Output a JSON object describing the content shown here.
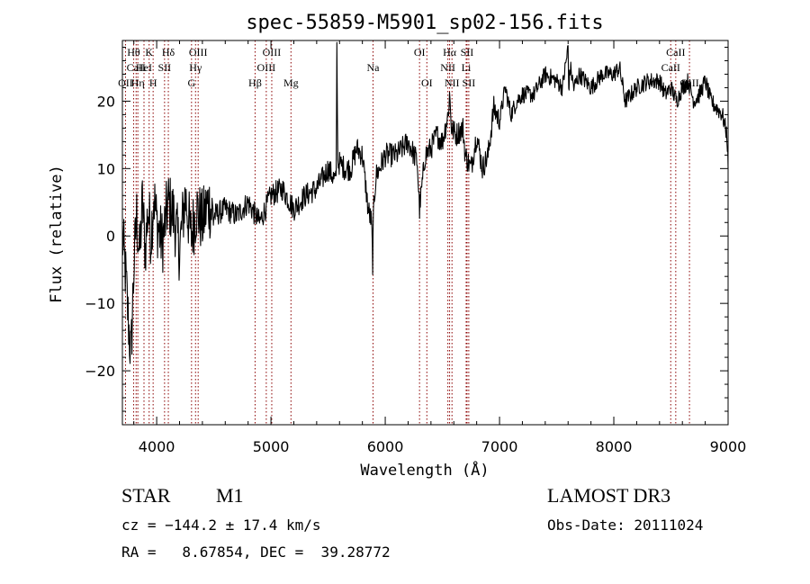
{
  "chart_data": {
    "type": "line",
    "title": "spec-55859-M5901_sp02-156.fits",
    "xlabel": "Wavelength (Å)",
    "ylabel": "Flux (relative)",
    "xlim": [
      3700,
      9000
    ],
    "ylim": [
      -28,
      29
    ],
    "x_ticks": [
      4000,
      5000,
      6000,
      7000,
      8000,
      9000
    ],
    "y_ticks": [
      -20,
      -10,
      0,
      10,
      20
    ],
    "series": [
      {
        "name": "flux",
        "x": [
          3700,
          3725,
          3750,
          3775,
          3800,
          3825,
          3850,
          3875,
          3900,
          3925,
          3950,
          3975,
          4000,
          4050,
          4100,
          4150,
          4200,
          4250,
          4300,
          4350,
          4400,
          4450,
          4500,
          4600,
          4700,
          4800,
          4900,
          5000,
          5100,
          5200,
          5300,
          5400,
          5500,
          5570,
          5577,
          5585,
          5650,
          5700,
          5750,
          5800,
          5850,
          5880,
          5890,
          5900,
          5920,
          5950,
          6000,
          6100,
          6200,
          6280,
          6300,
          6350,
          6400,
          6450,
          6500,
          6550,
          6563,
          6580,
          6620,
          6680,
          6700,
          6750,
          6800,
          6850,
          6900,
          6950,
          7000,
          7050,
          7100,
          7150,
          7200,
          7300,
          7400,
          7500,
          7550,
          7600,
          7605,
          7620,
          7650,
          7700,
          7800,
          7900,
          8000,
          8050,
          8100,
          8200,
          8300,
          8400,
          8450,
          8500,
          8550,
          8600,
          8650,
          8700,
          8750,
          8800,
          8850,
          8900,
          8950,
          8990,
          9000
        ],
        "values": [
          0,
          -5,
          -12,
          -18,
          -5,
          3,
          -3,
          5,
          -2,
          4,
          0,
          6,
          2,
          -1,
          5,
          3,
          -2,
          6,
          0,
          4,
          2,
          5,
          3,
          4,
          3,
          5,
          2,
          6,
          7,
          4,
          6,
          7,
          10,
          8,
          28,
          11,
          10,
          10,
          13,
          12,
          4,
          2,
          -4,
          5,
          9,
          10,
          12,
          12,
          14,
          11,
          4,
          12,
          13,
          15,
          14,
          18,
          21,
          16,
          15,
          16,
          12,
          10,
          15,
          10,
          12,
          19,
          17,
          22,
          18,
          20,
          21,
          21,
          24,
          23,
          22,
          28,
          22,
          25,
          22,
          24,
          22,
          24,
          24,
          25,
          20,
          22,
          23,
          23,
          21,
          22,
          20,
          22,
          23,
          20,
          21,
          23,
          20,
          19,
          18,
          15,
          10
        ]
      }
    ],
    "lines": [
      {
        "label": "Hθ",
        "wave": 3798,
        "row": 1
      },
      {
        "label": "CaII",
        "wave": 3820,
        "row": 2
      },
      {
        "label": "OII",
        "wave": 3727,
        "row": 3
      },
      {
        "label": "K",
        "wave": 3934,
        "row": 1
      },
      {
        "label": "HeI",
        "wave": 3889,
        "row": 2
      },
      {
        "label": "Hη",
        "wave": 3835,
        "row": 3
      },
      {
        "label": "SII",
        "wave": 4069,
        "row": 2
      },
      {
        "label": "H",
        "wave": 3969,
        "row": 3
      },
      {
        "label": "Hδ",
        "wave": 4102,
        "row": 1
      },
      {
        "label": "OIII",
        "wave": 4363,
        "row": 1
      },
      {
        "label": "Hγ",
        "wave": 4340,
        "row": 2
      },
      {
        "label": "G",
        "wave": 4305,
        "row": 3
      },
      {
        "label": "OIII",
        "wave": 5007,
        "row": 1
      },
      {
        "label": "OIII",
        "wave": 4959,
        "row": 2
      },
      {
        "label": "Hβ",
        "wave": 4861,
        "row": 3
      },
      {
        "label": "Mg",
        "wave": 5175,
        "row": 3
      },
      {
        "label": "Na",
        "wave": 5893,
        "row": 2
      },
      {
        "label": "OI",
        "wave": 6300,
        "row": 1
      },
      {
        "label": "OI",
        "wave": 6364,
        "row": 3
      },
      {
        "label": "Hα",
        "wave": 6563,
        "row": 1
      },
      {
        "label": "SII",
        "wave": 6716,
        "row": 1
      },
      {
        "label": "NII",
        "wave": 6548,
        "row": 2
      },
      {
        "label": "Li",
        "wave": 6708,
        "row": 2
      },
      {
        "label": "NII",
        "wave": 6584,
        "row": 3
      },
      {
        "label": "SII",
        "wave": 6731,
        "row": 3
      },
      {
        "label": "CaII",
        "wave": 8542,
        "row": 1
      },
      {
        "label": "CaII",
        "wave": 8498,
        "row": 2
      },
      {
        "label": "CaII",
        "wave": 8662,
        "row": 3
      }
    ],
    "line_color": "#8b0000",
    "flux_color": "#000000"
  },
  "info": {
    "object_class": "STAR",
    "subclass": "M1",
    "survey": "LAMOST DR3",
    "cz": "cz = −144.2 ± 17.4 km/s",
    "obs_date": "Obs-Date: 20111024",
    "coords": "RA =   8.67854, DEC =  39.28772"
  }
}
